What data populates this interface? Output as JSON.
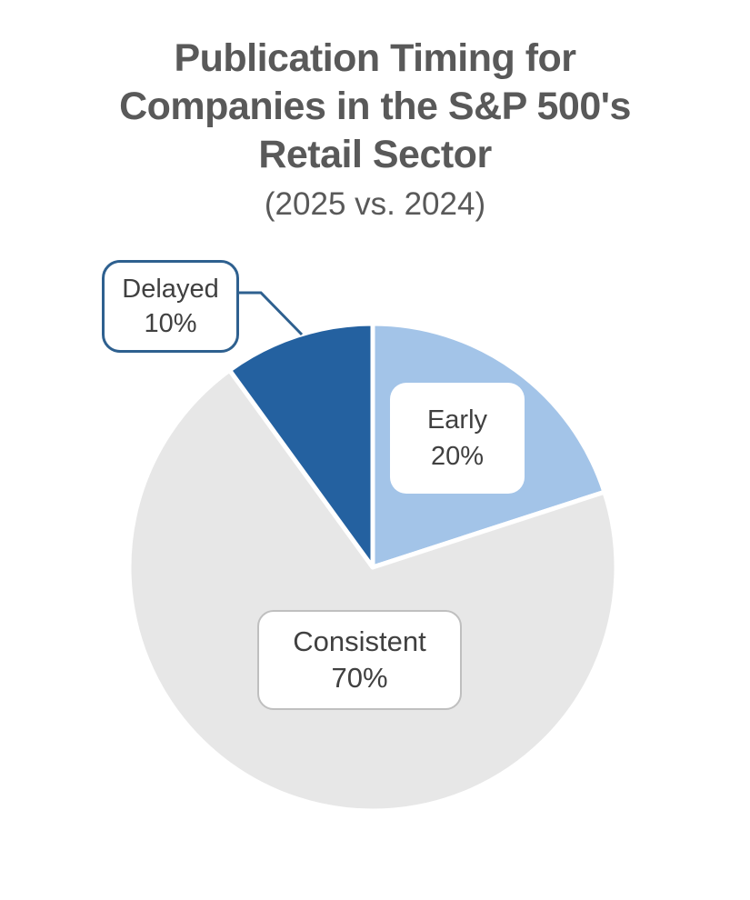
{
  "header": {
    "title_lines": [
      "Publication Timing for",
      "Companies in the S&P 500's",
      "Retail Sector"
    ],
    "subtitle": "(2025 vs. 2024)"
  },
  "chart_data": {
    "type": "pie",
    "title": "Publication Timing for Companies in the S&P 500's Retail Sector",
    "subtitle": "(2025 vs. 2024)",
    "categories": [
      "Early",
      "Consistent",
      "Delayed"
    ],
    "values": [
      20,
      70,
      10
    ],
    "unit": "%",
    "start_angle_deg": 0,
    "direction": "clockwise",
    "slice_colors": [
      "#A3C4E8",
      "#E7E7E7",
      "#2461A0"
    ],
    "slice_gap_color": "#FFFFFF",
    "slice_gap_width": 5,
    "legend_position": "none",
    "labels": [
      {
        "category": "Early",
        "value_text": "20%",
        "style": "white-box-on-slice"
      },
      {
        "category": "Consistent",
        "value_text": "70%",
        "style": "white-box-gray-border-on-slice"
      },
      {
        "category": "Delayed",
        "value_text": "10%",
        "style": "callout-box-with-leader-line"
      }
    ]
  },
  "callouts": {
    "delayed": {
      "line1": "Delayed",
      "line2": "10%",
      "border_color": "#2E608F",
      "leader_color": "#2E608F"
    },
    "early": {
      "line1": "Early",
      "line2": "20%"
    },
    "consistent": {
      "line1": "Consistent",
      "line2": "70%",
      "border_color": "#BFBFBF"
    }
  },
  "colors": {
    "title_text": "#595959",
    "label_text": "#404040",
    "background": "#FFFFFF"
  }
}
